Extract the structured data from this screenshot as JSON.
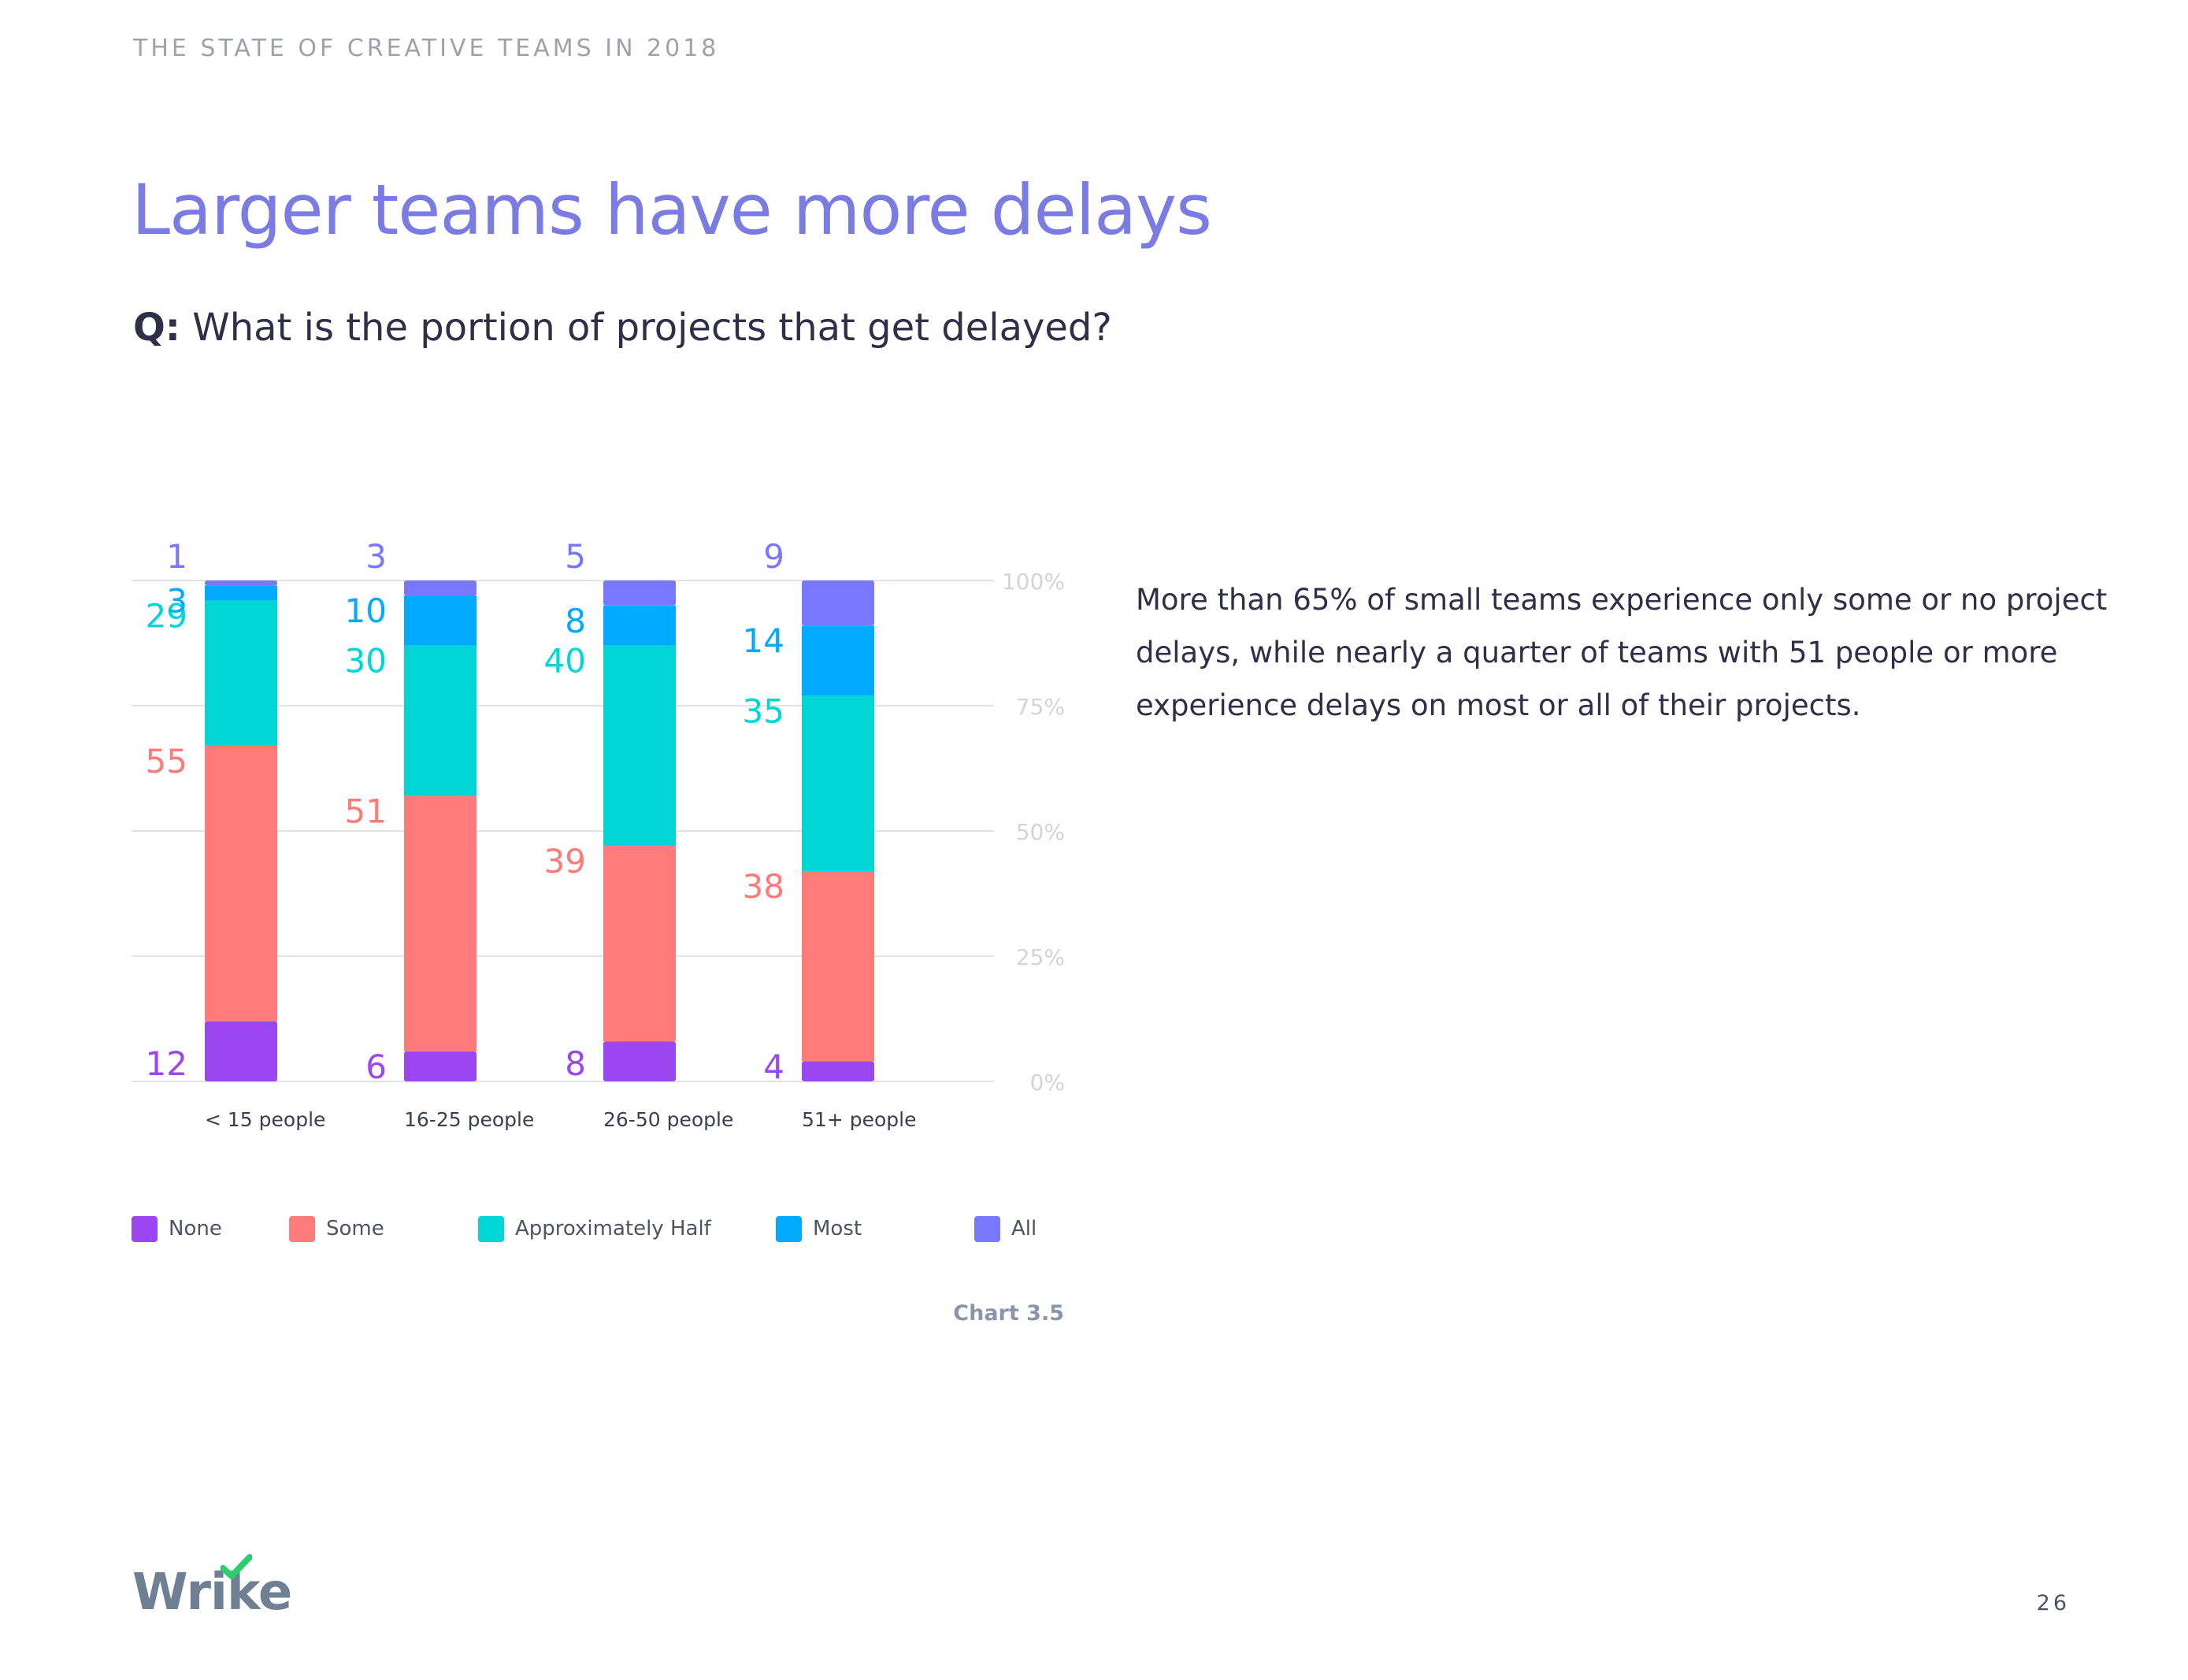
{
  "header": {
    "text": "THE STATE OF CREATIVE TEAMS IN 2018"
  },
  "title": "Larger teams have more delays",
  "question": {
    "prefix": "Q:",
    "text": " What is the portion of projects that get delayed?"
  },
  "description": "More than 65% of small teams experience only some or no project delays, while nearly a quarter of teams with 51 people or more experience delays on most or all of their projects.",
  "chart_caption": "Chart 3.5",
  "page_number": "26",
  "logo_text": "Wrike",
  "colors": {
    "none": "#9b47ef",
    "some": "#ff7b7b",
    "approximately_half": "#00d6d6",
    "most": "#00aaff",
    "all": "#7878ff",
    "grid": "#e3e3e3",
    "tick": "#d4d4d8",
    "accent_title": "#7b7be4",
    "logo_check": "#2ecc71"
  },
  "chart_data": {
    "type": "bar",
    "stacked": true,
    "categories": [
      "< 15 people",
      "16-25 people",
      "26-50 people",
      "51+ people"
    ],
    "series": [
      {
        "name": "None",
        "values": [
          12,
          6,
          8,
          4
        ]
      },
      {
        "name": "Some",
        "values": [
          55,
          51,
          39,
          38
        ]
      },
      {
        "name": "Approximately Half",
        "values": [
          29,
          30,
          40,
          35
        ]
      },
      {
        "name": "Most",
        "values": [
          3,
          10,
          8,
          14
        ]
      },
      {
        "name": "All",
        "values": [
          1,
          3,
          5,
          9
        ]
      }
    ],
    "ylim": [
      0,
      100
    ],
    "yticks": [
      "0%",
      "25%",
      "50%",
      "75%",
      "100%"
    ],
    "ytick_values": [
      0,
      25,
      50,
      75,
      100
    ],
    "grid": true,
    "legend_position": "bottom"
  }
}
